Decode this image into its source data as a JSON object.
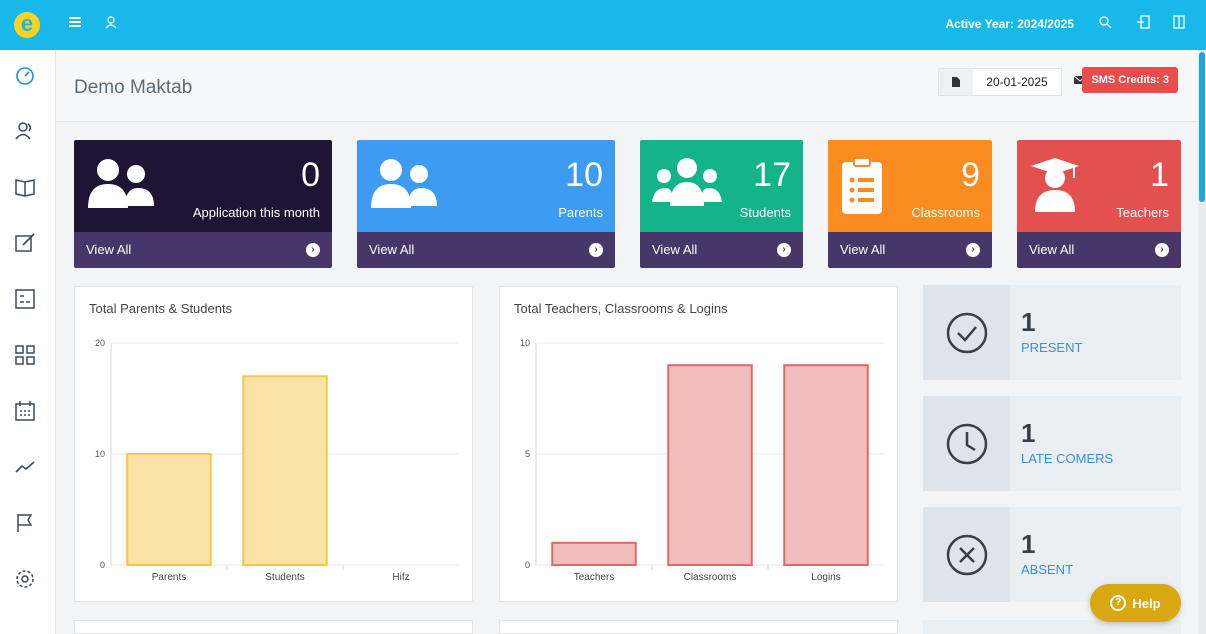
{
  "topbar": {
    "logo_letter": "e",
    "active_year": "Active Year: 2024/2025",
    "icons": [
      "menu-icon",
      "user-icon",
      "search-icon",
      "logout-icon",
      "fullscreen-icon"
    ]
  },
  "sidebar": {
    "items": [
      "dashboard-icon",
      "users-icon",
      "book-icon",
      "edit-icon",
      "calculator-icon",
      "grid-icon",
      "calendar-icon",
      "trend-icon",
      "flag-icon",
      "settings-icon"
    ]
  },
  "header": {
    "title": "Demo Maktab",
    "date": "20-01-2025",
    "sms_credits": "SMS Credits: 3"
  },
  "stats": [
    {
      "number": "0",
      "label": "Application this month",
      "view": "View All",
      "color": "#1d1533",
      "icon": "users-icon"
    },
    {
      "number": "10",
      "label": "Parents",
      "view": "View All",
      "color": "#3e9bf2",
      "icon": "parents-icon"
    },
    {
      "number": "17",
      "label": "Students",
      "view": "View All",
      "color": "#13b48a",
      "icon": "students-icon"
    },
    {
      "number": "9",
      "label": "Classrooms",
      "view": "View All",
      "color": "#fb8c1f",
      "icon": "clipboard-icon"
    },
    {
      "number": "1",
      "label": "Teachers",
      "view": "View All",
      "color": "#e2514f",
      "icon": "graduate-icon"
    }
  ],
  "charts": {
    "parents_students": {
      "title": "Total Parents & Students"
    },
    "teachers_classrooms": {
      "title": "Total Teachers, Classrooms & Logins"
    }
  },
  "chart_data": [
    {
      "type": "bar",
      "title": "Total Parents & Students",
      "categories": [
        "Parents",
        "Students",
        "Hifz"
      ],
      "values": [
        10,
        17,
        0
      ],
      "ylim": [
        0,
        20
      ],
      "yticks": [
        0,
        10,
        20
      ],
      "colors": {
        "fill": "#fbe2a6",
        "stroke": "#f5c744"
      },
      "grid": true
    },
    {
      "type": "bar",
      "title": "Total Teachers, Classrooms & Logins",
      "categories": [
        "Teachers",
        "Classrooms",
        "Logins"
      ],
      "values": [
        1,
        9,
        9
      ],
      "ylim": [
        0,
        10
      ],
      "yticks": [
        0,
        5,
        10
      ],
      "colors": {
        "fill": "#f0bcbc",
        "stroke": "#e06868"
      },
      "grid": true
    }
  ],
  "attendance": [
    {
      "number": "1",
      "label": "PRESENT",
      "icon": "check-circle-icon"
    },
    {
      "number": "1",
      "label": "LATE COMERS",
      "icon": "clock-icon"
    },
    {
      "number": "1",
      "label": "ABSENT",
      "icon": "x-circle-icon"
    }
  ],
  "help": {
    "label": "Help"
  }
}
